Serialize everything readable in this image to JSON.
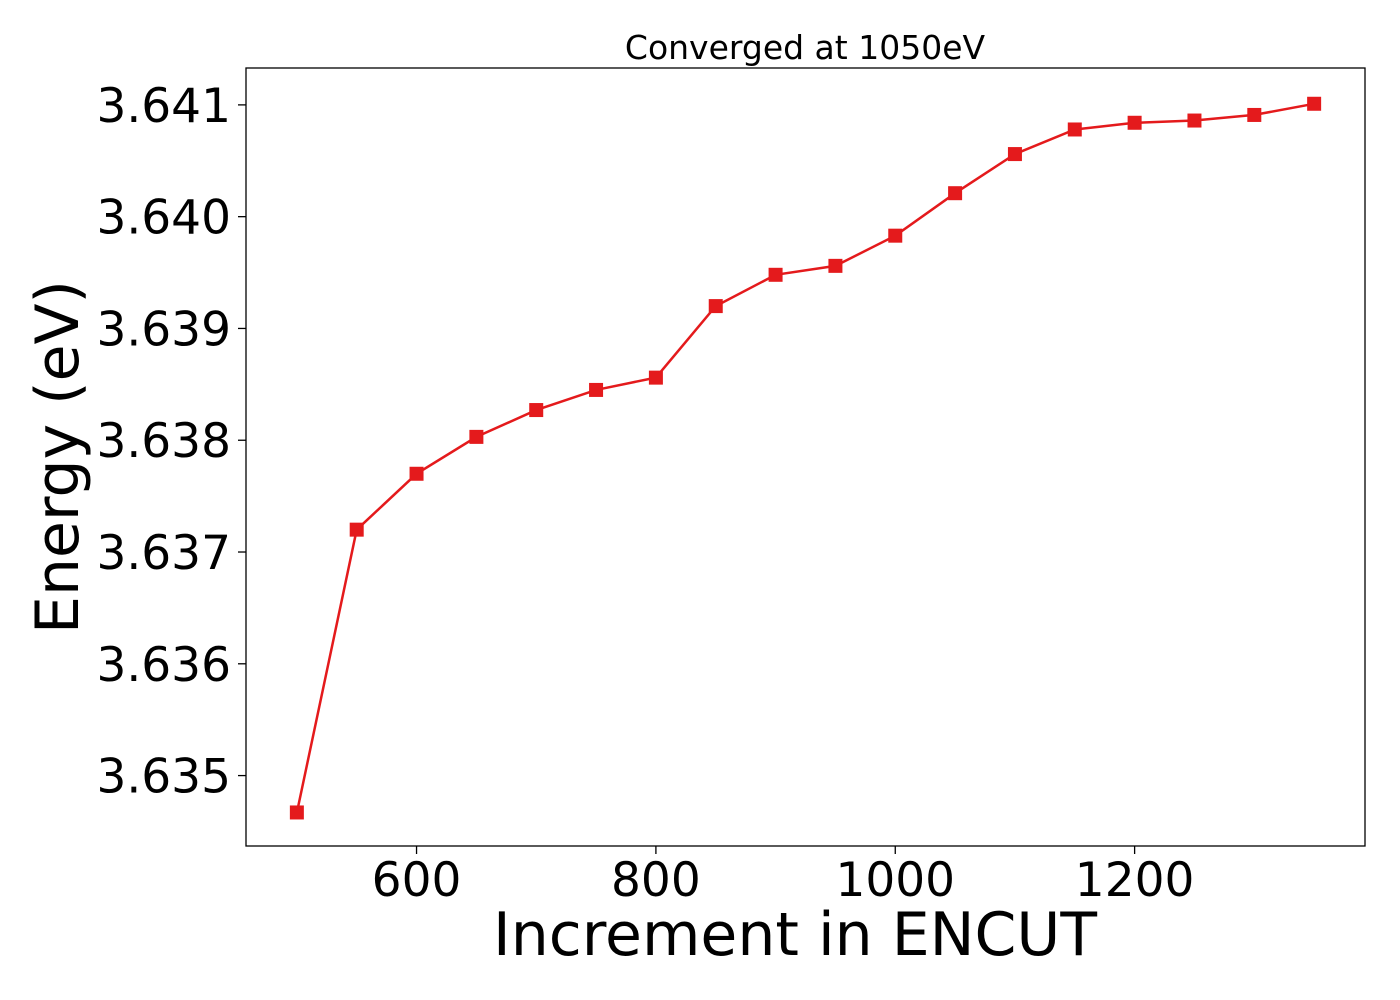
{
  "chart_data": {
    "type": "line",
    "title": "Converged at 1050eV",
    "xlabel": "Increment in ENCUT",
    "ylabel": "Energy (eV)",
    "xlim": [
      457.5,
      1392.5
    ],
    "ylim": [
      3.63437,
      3.64133
    ],
    "xticks": [
      600,
      800,
      1000,
      1200
    ],
    "yticks": [
      3.635,
      3.636,
      3.637,
      3.638,
      3.639,
      3.64,
      3.641
    ],
    "ytick_labels": [
      "3.635",
      "3.636",
      "3.637",
      "3.638",
      "3.639",
      "3.640",
      "3.641"
    ],
    "grid": false,
    "legend": "none",
    "series": [
      {
        "color": "#e41a1c",
        "marker": "square",
        "x": [
          500,
          550,
          600,
          650,
          700,
          750,
          800,
          850,
          900,
          950,
          1000,
          1050,
          1100,
          1150,
          1200,
          1250,
          1300,
          1350
        ],
        "y": [
          3.63467,
          3.6372,
          3.6377,
          3.63803,
          3.63827,
          3.63845,
          3.63856,
          3.6392,
          3.63948,
          3.63956,
          3.63983,
          3.64021,
          3.64056,
          3.64078,
          3.64084,
          3.64086,
          3.64091,
          3.64101
        ]
      }
    ]
  }
}
